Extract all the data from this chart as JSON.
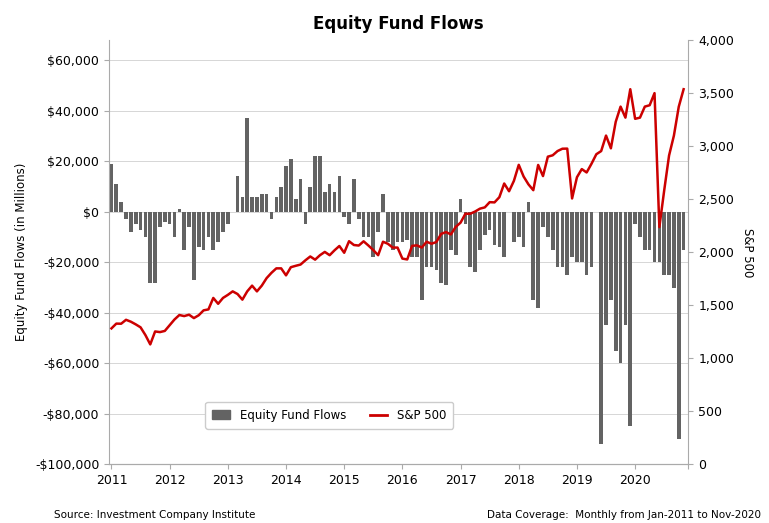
{
  "title": "Equity Fund Flows",
  "ylabel_left": "Equity Fund Flows (in Millions)",
  "ylabel_right": "S&P 500",
  "source_left": "Source: Investment Company Institute",
  "source_right": "Data Coverage:  Monthly from Jan-2011 to Nov-2020",
  "ylim_left": [
    -100000,
    68000
  ],
  "ylim_right": [
    0,
    4000
  ],
  "bar_color": "#636363",
  "line_color": "#cc0000",
  "fund_flows": [
    19000,
    11000,
    4000,
    -3000,
    -8000,
    -5000,
    -7000,
    -10000,
    -28000,
    -28000,
    -6000,
    -4000,
    -5000,
    -10000,
    1000,
    -15000,
    -6000,
    -27000,
    -14000,
    -15000,
    -10000,
    -15000,
    -12000,
    -8000,
    -5000,
    0,
    14000,
    6000,
    37000,
    6000,
    6000,
    7000,
    7000,
    -3000,
    6000,
    10000,
    18000,
    21000,
    5000,
    13000,
    -5000,
    10000,
    22000,
    22000,
    8000,
    11000,
    8000,
    14000,
    -2000,
    -5000,
    13000,
    -3000,
    -10000,
    -10000,
    -18000,
    -8000,
    7000,
    -12000,
    -15000,
    -12000,
    -12000,
    -11000,
    -18000,
    -18000,
    -35000,
    -22000,
    -22000,
    -23000,
    -28000,
    -29000,
    -15000,
    -17000,
    5000,
    -5000,
    -22000,
    -24000,
    -15000,
    -9000,
    -7000,
    -13000,
    -14000,
    -18000,
    0,
    -12000,
    -10000,
    -14000,
    4000,
    -35000,
    -38000,
    -6000,
    -10000,
    -15000,
    -22000,
    -22000,
    -25000,
    -18000,
    -20000,
    -20000,
    -25000,
    -22000,
    0,
    -92000,
    -45000,
    -35000,
    -55000,
    -60000,
    -45000,
    -85000,
    -5000,
    -10000,
    -15000,
    -15000,
    -20000,
    -20000,
    -25000,
    -25000,
    -30000,
    -90000,
    -15000
  ],
  "sp500": [
    1282,
    1327,
    1326,
    1363,
    1345,
    1320,
    1292,
    1219,
    1131,
    1253,
    1247,
    1258,
    1312,
    1366,
    1408,
    1398,
    1411,
    1379,
    1406,
    1452,
    1461,
    1569,
    1514,
    1569,
    1598,
    1631,
    1606,
    1553,
    1631,
    1685,
    1631,
    1685,
    1756,
    1806,
    1848,
    1848,
    1782,
    1859,
    1872,
    1884,
    1924,
    1960,
    1930,
    1972,
    2003,
    1972,
    2018,
    2059,
    1995,
    2104,
    2068,
    2063,
    2103,
    2063,
    2020,
    1972,
    2099,
    2080,
    2044,
    2044,
    1940,
    1932,
    2060,
    2065,
    2044,
    2099,
    2080,
    2096,
    2173,
    2190,
    2168,
    2239,
    2279,
    2363,
    2363,
    2384,
    2411,
    2423,
    2472,
    2470,
    2519,
    2648,
    2575,
    2673,
    2824,
    2714,
    2640,
    2585,
    2823,
    2718,
    2901,
    2914,
    2954,
    2976,
    2977,
    2507,
    2707,
    2784,
    2752,
    2834,
    2924,
    2954,
    3100,
    2980,
    3230,
    3373,
    3269,
    3537,
    3258,
    3269,
    3373,
    3386,
    3500,
    2237,
    2584,
    2912,
    3100,
    3372,
    3537
  ],
  "xtick_labels": [
    "2011",
    "2012",
    "2013",
    "2014",
    "2015",
    "2016",
    "2017",
    "2018",
    "2019",
    "2020",
    ""
  ],
  "xtick_positions": [
    0,
    12,
    24,
    36,
    48,
    60,
    72,
    84,
    96,
    108,
    119
  ]
}
